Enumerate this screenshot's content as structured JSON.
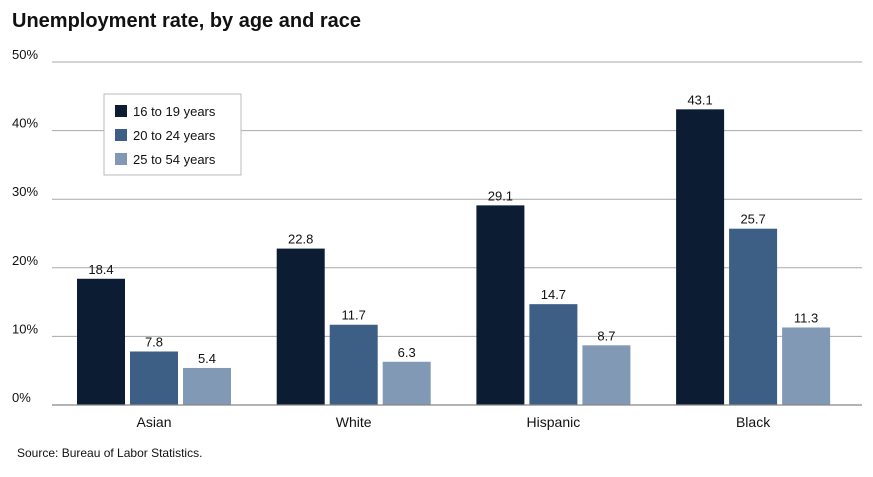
{
  "chart_data": {
    "type": "bar",
    "title": "Unemployment rate, by age and race",
    "source": "Source: Bureau of Labor Statistics.",
    "categories": [
      "Asian",
      "White",
      "Hispanic",
      "Black"
    ],
    "series": [
      {
        "name": "16 to 19 years",
        "color": "#0c1c33",
        "values": [
          18.4,
          22.8,
          29.1,
          43.1
        ]
      },
      {
        "name": "20 to 24 years",
        "color": "#3d5f86",
        "values": [
          7.8,
          11.7,
          14.7,
          25.7
        ]
      },
      {
        "name": "25 to 54 years",
        "color": "#8199b4",
        "values": [
          5.4,
          6.3,
          8.7,
          11.3
        ]
      }
    ],
    "value_labels": [
      [
        "18.4",
        "7.8",
        "5.4"
      ],
      [
        "22.8",
        "11.7",
        "6.3"
      ],
      [
        "29.1",
        "14.7",
        "8.7"
      ],
      [
        "43.1",
        "25.7",
        "11.3"
      ]
    ],
    "ylim": [
      0,
      50
    ],
    "yticks": [
      0,
      10,
      20,
      30,
      40,
      50
    ],
    "ytick_labels": [
      "0%",
      "10%",
      "20%",
      "30%",
      "40%",
      "50%"
    ],
    "xlabel": "",
    "ylabel": "",
    "grid": true,
    "legend_position": "top-left"
  }
}
